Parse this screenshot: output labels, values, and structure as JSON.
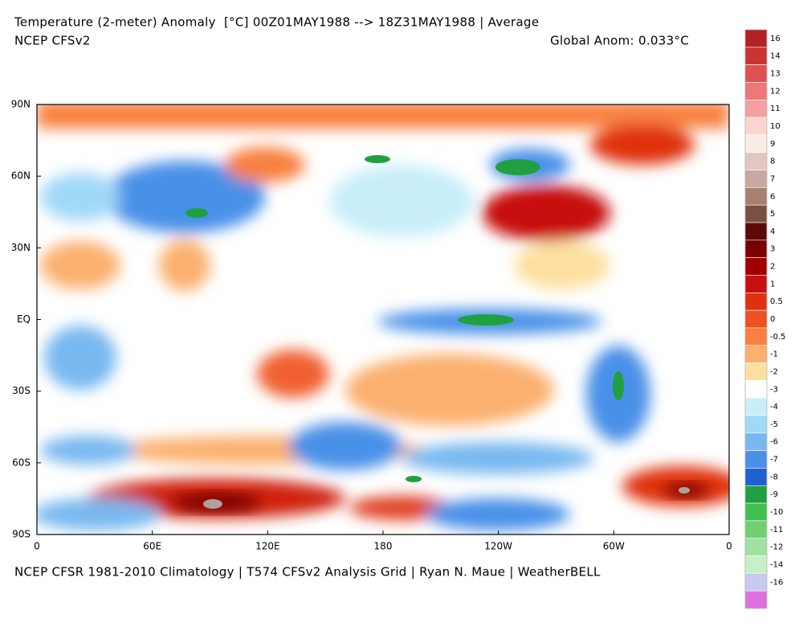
{
  "header": {
    "title": "Temperature (2-meter) Anomaly  [°C] 00Z01MAY1988 --> 18Z31MAY1988 | Average",
    "model": "NCEP CFSv2",
    "global_anom": "Global Anom: 0.033°C"
  },
  "map": {
    "lat_labels": [
      "90N",
      "60N",
      "30N",
      "EQ",
      "30S",
      "60S",
      "90S"
    ],
    "lon_labels": [
      "0",
      "60E",
      "120E",
      "180",
      "120W",
      "60W",
      "0"
    ]
  },
  "colorbar": {
    "labels": [
      "16",
      "14",
      "13",
      "12",
      "11",
      "10",
      "9",
      "8",
      "7",
      "6",
      "5",
      "4",
      "3",
      "2",
      "1",
      "0.5",
      "0",
      "-0.5",
      "-1",
      "-2",
      "-3",
      "-4",
      "-5",
      "-6",
      "-7",
      "-8",
      "-9",
      "-10",
      "-11",
      "-12",
      "-14",
      "-16"
    ],
    "colors": [
      "#b22222",
      "#cc3333",
      "#e05050",
      "#ee7777",
      "#f4a0a0",
      "#fcd4d0",
      "#f8ece6",
      "#e0c8c0",
      "#c8a8a0",
      "#a88070",
      "#7a5040",
      "#5a0a0a",
      "#7a0000",
      "#a00000",
      "#c81010",
      "#e03010",
      "#f05020",
      "#f88040",
      "#fbb070",
      "#fde0a0",
      "#ffffff",
      "#c8eefa",
      "#a0d8f8",
      "#78b8f0",
      "#4a90e8",
      "#2060d0",
      "#20a040",
      "#40c050",
      "#70d070",
      "#a0e0a0",
      "#c8f0c8",
      "#c8c8f0",
      "#e070e0"
    ]
  },
  "footer": "NCEP CFSR 1981-2010 Climatology | T574 CFSv2 Analysis Grid | Ryan N. Maue | WeatherBELL"
}
